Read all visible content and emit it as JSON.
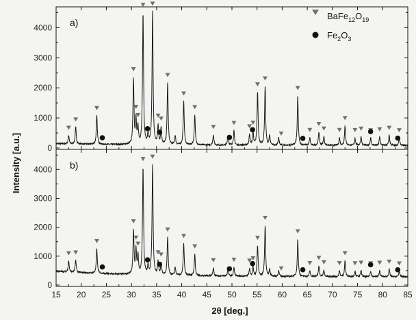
{
  "colors": {
    "line": "#1a1a1a",
    "triangle": "#707070",
    "circle": "#111111",
    "background": "#f4f4f2"
  },
  "chart_data": {
    "type": "line",
    "xlabel": "2θ [deg.]",
    "ylabel": "Intensity [a.u.]",
    "xlim": [
      15,
      85
    ],
    "ylim": [
      0,
      4600
    ],
    "xticks": [
      "15",
      "20",
      "25",
      "30",
      "35",
      "40",
      "45",
      "50",
      "55",
      "60",
      "65",
      "70",
      "75",
      "80",
      "85"
    ],
    "yticks": [
      "0",
      "1000",
      "2000",
      "3000",
      "4000"
    ],
    "legend": {
      "position": "top-right",
      "entries": [
        {
          "marker": "triangle",
          "base": "BaFe",
          "sub1": "12",
          "mid": "O",
          "sub2": "19"
        },
        {
          "marker": "circle",
          "base": "Fe",
          "sub1": "2",
          "mid": "O",
          "sub2": "3"
        }
      ]
    },
    "panels": [
      {
        "label": "a)",
        "background": 120,
        "peaks": [
          [
            17.5,
            280
          ],
          [
            18.9,
            560
          ],
          [
            23.1,
            950
          ],
          [
            30.4,
            2180
          ],
          [
            30.9,
            800
          ],
          [
            31.3,
            560
          ],
          [
            32.3,
            4350
          ],
          [
            33.3,
            300
          ],
          [
            34.2,
            4400
          ],
          [
            35.3,
            630
          ],
          [
            35.9,
            550
          ],
          [
            37.2,
            2050
          ],
          [
            38.7,
            300
          ],
          [
            40.4,
            1450
          ],
          [
            42.6,
            1000
          ],
          [
            46.3,
            350
          ],
          [
            49.2,
            320
          ],
          [
            50.4,
            480
          ],
          [
            53.5,
            350
          ],
          [
            54.2,
            450
          ],
          [
            55.1,
            1750
          ],
          [
            56.6,
            1950
          ],
          [
            57.5,
            300
          ],
          [
            59.3,
            250
          ],
          [
            63.1,
            1650
          ],
          [
            65.5,
            250
          ],
          [
            67.3,
            450
          ],
          [
            68.3,
            300
          ],
          [
            71.4,
            250
          ],
          [
            72.5,
            650
          ],
          [
            74.5,
            250
          ],
          [
            75.7,
            300
          ],
          [
            77.6,
            250
          ],
          [
            79.4,
            280
          ],
          [
            81.3,
            330
          ],
          [
            83.3,
            250
          ]
        ],
        "triangles": [
          17.5,
          18.9,
          23.1,
          30.4,
          30.9,
          31.3,
          32.3,
          34.2,
          35.3,
          35.9,
          37.2,
          40.4,
          42.6,
          46.3,
          50.4,
          53.5,
          54.2,
          55.1,
          56.6,
          59.8,
          63.1,
          65.5,
          67.3,
          68.3,
          71.4,
          72.5,
          74.5,
          75.7,
          77.6,
          79.4,
          81.3,
          83.3
        ],
        "circles": [
          24.2,
          33.2,
          35.6,
          49.5,
          54.1,
          64.1,
          77.6,
          83.0
        ]
      },
      {
        "label": "b)",
        "background": 400,
        "peaks": [
          [
            17.5,
            380
          ],
          [
            18.9,
            420
          ],
          [
            23.1,
            850
          ],
          [
            30.4,
            1500
          ],
          [
            30.9,
            850
          ],
          [
            31.3,
            650
          ],
          [
            32.3,
            3700
          ],
          [
            33.3,
            300
          ],
          [
            34.2,
            3800
          ],
          [
            35.3,
            450
          ],
          [
            35.9,
            400
          ],
          [
            37.2,
            1300
          ],
          [
            38.7,
            280
          ],
          [
            40.4,
            1100
          ],
          [
            42.6,
            750
          ],
          [
            46.3,
            280
          ],
          [
            49.2,
            230
          ],
          [
            50.4,
            300
          ],
          [
            53.5,
            260
          ],
          [
            54.2,
            330
          ],
          [
            55.1,
            1050
          ],
          [
            56.6,
            1750
          ],
          [
            57.5,
            230
          ],
          [
            59.3,
            200
          ],
          [
            63.1,
            1300
          ],
          [
            65.5,
            200
          ],
          [
            67.3,
            380
          ],
          [
            68.3,
            230
          ],
          [
            71.4,
            200
          ],
          [
            72.5,
            550
          ],
          [
            74.5,
            200
          ],
          [
            75.7,
            220
          ],
          [
            77.6,
            200
          ],
          [
            79.4,
            220
          ],
          [
            81.3,
            260
          ],
          [
            83.3,
            200
          ]
        ],
        "triangles": [
          17.5,
          18.9,
          23.1,
          30.4,
          30.9,
          31.3,
          32.3,
          34.2,
          35.3,
          35.9,
          37.2,
          40.4,
          42.6,
          46.3,
          50.4,
          53.5,
          54.2,
          55.1,
          56.6,
          59.8,
          63.1,
          65.5,
          67.3,
          68.3,
          71.4,
          72.5,
          74.5,
          75.7,
          77.6,
          79.4,
          81.3,
          83.3
        ],
        "circles": [
          24.2,
          33.2,
          35.6,
          49.5,
          54.1,
          64.1,
          77.6,
          83.0
        ]
      }
    ]
  }
}
